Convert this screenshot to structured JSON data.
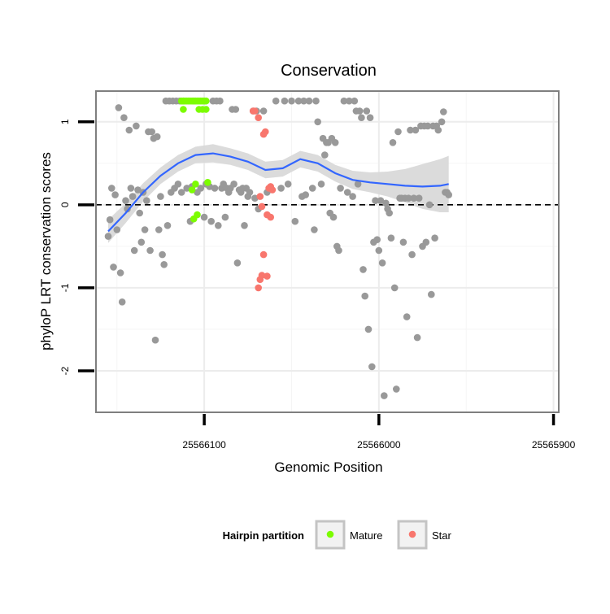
{
  "chart_data": {
    "type": "scatter",
    "title": "Conservation",
    "xlabel": "Genomic Position",
    "ylabel": "phyloP LRT conservation scores",
    "x_reversed": true,
    "xlim": [
      25566162,
      25565897
    ],
    "ylim": [
      -2.5,
      1.37
    ],
    "x_ticks": [
      {
        "value": 25566100,
        "label": "25566100"
      },
      {
        "value": 25566000,
        "label": "25566000"
      },
      {
        "value": 25565900,
        "label": "25565900"
      }
    ],
    "y_ticks": [
      {
        "value": 1,
        "label": "1"
      },
      {
        "value": 0,
        "label": "0"
      },
      {
        "value": -1,
        "label": "-1"
      },
      {
        "value": -2,
        "label": "-2"
      }
    ],
    "grid": true,
    "reference_line": {
      "y": 0,
      "style": "dashed"
    },
    "legend": {
      "title": "Hairpin partition",
      "position": "bottom",
      "entries": [
        {
          "label": "Mature",
          "color": "#7cfc00"
        },
        {
          "label": "Star",
          "color": "#f8766d"
        }
      ]
    },
    "colors": {
      "other": "#999999",
      "Mature": "#7cfc00",
      "Star": "#f8766d",
      "smooth": "#3366ff",
      "ribbon": "#d9d9d9"
    },
    "series": [
      {
        "group": "other",
        "points": [
          [
            25566155,
            -0.38
          ],
          [
            25566154,
            -0.18
          ],
          [
            25566153,
            0.2
          ],
          [
            25566152,
            -0.75
          ],
          [
            25566151,
            0.12
          ],
          [
            25566150,
            -0.3
          ],
          [
            25566149,
            1.17
          ],
          [
            25566148,
            -0.82
          ],
          [
            25566147,
            -1.17
          ],
          [
            25566146,
            1.05
          ],
          [
            25566145,
            0.05
          ],
          [
            25566144,
            -0.05
          ],
          [
            25566143,
            0.9
          ],
          [
            25566142,
            0.2
          ],
          [
            25566141,
            0.1
          ],
          [
            25566140,
            -0.55
          ],
          [
            25566139,
            0.95
          ],
          [
            25566138,
            0.18
          ],
          [
            25566137,
            -0.1
          ],
          [
            25566136,
            -0.45
          ],
          [
            25566135,
            0.15
          ],
          [
            25566134,
            -0.3
          ],
          [
            25566133,
            0.05
          ],
          [
            25566132,
            0.88
          ],
          [
            25566131,
            -0.55
          ],
          [
            25566130,
            0.88
          ],
          [
            25566129,
            0.8
          ],
          [
            25566128,
            -1.63
          ],
          [
            25566127,
            0.82
          ],
          [
            25566126,
            -0.3
          ],
          [
            25566125,
            0.1
          ],
          [
            25566124,
            -0.6
          ],
          [
            25566123,
            -0.72
          ],
          [
            25566122,
            1.25
          ],
          [
            25566121,
            -0.25
          ],
          [
            25566120,
            1.25
          ],
          [
            25566119,
            0.15
          ],
          [
            25566118,
            1.25
          ],
          [
            25566117,
            0.2
          ],
          [
            25566116,
            1.25
          ],
          [
            25566115,
            0.25
          ],
          [
            25566114,
            1.25
          ],
          [
            25566113,
            0.15
          ],
          [
            25566112,
            1.25
          ],
          [
            25566110,
            0.2
          ],
          [
            25566108,
            -0.2
          ],
          [
            25566107,
            0.22
          ],
          [
            25566106,
            1.25
          ],
          [
            25566104,
            0.15
          ],
          [
            25566102,
            0.2
          ],
          [
            25566100,
            -0.15
          ],
          [
            25566099,
            0.25
          ],
          [
            25566097,
            0.22
          ],
          [
            25566096,
            -0.2
          ],
          [
            25566095,
            1.25
          ],
          [
            25566094,
            0.2
          ],
          [
            25566093,
            1.25
          ],
          [
            25566092,
            -0.25
          ],
          [
            25566091,
            1.25
          ],
          [
            25566090,
            0.2
          ],
          [
            25566089,
            0.25
          ],
          [
            25566088,
            -0.15
          ],
          [
            25566087,
            0.2
          ],
          [
            25566086,
            0.15
          ],
          [
            25566085,
            0.2
          ],
          [
            25566084,
            1.15
          ],
          [
            25566083,
            0.25
          ],
          [
            25566082,
            1.15
          ],
          [
            25566081,
            -0.7
          ],
          [
            25566080,
            0.18
          ],
          [
            25566079,
            0.15
          ],
          [
            25566078,
            0.2
          ],
          [
            25566077,
            -0.25
          ],
          [
            25566076,
            0.2
          ],
          [
            25566075,
            0.1
          ],
          [
            25566074,
            0.15
          ],
          [
            25566072,
            1.13
          ],
          [
            25566071,
            0.08
          ],
          [
            25566070,
            1.13
          ],
          [
            25566069,
            -0.05
          ],
          [
            25566066,
            1.13
          ],
          [
            25566064,
            0.15
          ],
          [
            25566059,
            1.25
          ],
          [
            25566056,
            0.2
          ],
          [
            25566054,
            1.25
          ],
          [
            25566052,
            0.25
          ],
          [
            25566050,
            1.25
          ],
          [
            25566048,
            -0.2
          ],
          [
            25566046,
            1.25
          ],
          [
            25566044,
            0.1
          ],
          [
            25566043,
            1.25
          ],
          [
            25566042,
            0.12
          ],
          [
            25566040,
            1.25
          ],
          [
            25566038,
            0.2
          ],
          [
            25566037,
            -0.3
          ],
          [
            25566036,
            1.25
          ],
          [
            25566035,
            1.0
          ],
          [
            25566033,
            0.25
          ],
          [
            25566032,
            0.8
          ],
          [
            25566031,
            0.6
          ],
          [
            25566030,
            0.75
          ],
          [
            25566029,
            0.75
          ],
          [
            25566028,
            -0.1
          ],
          [
            25566027,
            0.8
          ],
          [
            25566026,
            -0.15
          ],
          [
            25566025,
            0.75
          ],
          [
            25566024,
            -0.5
          ],
          [
            25566023,
            -0.55
          ],
          [
            25566022,
            0.2
          ],
          [
            25566020,
            1.25
          ],
          [
            25566018,
            0.15
          ],
          [
            25566017,
            1.25
          ],
          [
            25566015,
            0.1
          ],
          [
            25566014,
            1.25
          ],
          [
            25566013,
            1.13
          ],
          [
            25566012,
            0.25
          ],
          [
            25566011,
            1.13
          ],
          [
            25566010,
            1.05
          ],
          [
            25566009,
            -0.78
          ],
          [
            25566008,
            -1.1
          ],
          [
            25566007,
            1.13
          ],
          [
            25566006,
            -1.5
          ],
          [
            25566005,
            1.05
          ],
          [
            25566004,
            -1.95
          ],
          [
            25566003,
            -0.45
          ],
          [
            25566002,
            0.05
          ],
          [
            25566001,
            -0.42
          ],
          [
            25566000,
            -0.55
          ],
          [
            25565999,
            0.05
          ],
          [
            25565998,
            -0.7
          ],
          [
            25565997,
            -2.3
          ],
          [
            25565996,
            0.02
          ],
          [
            25565995,
            -0.05
          ],
          [
            25565994,
            -0.1
          ],
          [
            25565993,
            -0.4
          ],
          [
            25565992,
            0.75
          ],
          [
            25565991,
            -1.0
          ],
          [
            25565990,
            -2.22
          ],
          [
            25565989,
            0.88
          ],
          [
            25565988,
            0.08
          ],
          [
            25565987,
            0.08
          ],
          [
            25565986,
            -0.45
          ],
          [
            25565985,
            0.08
          ],
          [
            25565984,
            -1.35
          ],
          [
            25565983,
            0.08
          ],
          [
            25565982,
            0.9
          ],
          [
            25565981,
            -0.6
          ],
          [
            25565980,
            0.08
          ],
          [
            25565979,
            0.9
          ],
          [
            25565978,
            -1.6
          ],
          [
            25565977,
            0.08
          ],
          [
            25565976,
            0.95
          ],
          [
            25565975,
            -0.5
          ],
          [
            25565974,
            0.95
          ],
          [
            25565973,
            -0.45
          ],
          [
            25565972,
            0.95
          ],
          [
            25565971,
            0.0
          ],
          [
            25565970,
            -1.08
          ],
          [
            25565969,
            0.95
          ],
          [
            25565968,
            -0.4
          ],
          [
            25565967,
            0.95
          ],
          [
            25565966,
            0.9
          ],
          [
            25565964,
            1.0
          ],
          [
            25565963,
            1.12
          ],
          [
            25565962,
            0.15
          ],
          [
            25565961,
            0.15
          ],
          [
            25565960,
            0.12
          ]
        ]
      },
      {
        "group": "Mature",
        "points": [
          [
            25566113,
            1.25
          ],
          [
            25566112,
            1.25
          ],
          [
            25566111,
            1.25
          ],
          [
            25566110,
            1.25
          ],
          [
            25566109,
            1.25
          ],
          [
            25566108,
            1.25
          ],
          [
            25566107,
            1.25
          ],
          [
            25566106,
            1.25
          ],
          [
            25566105,
            1.25
          ],
          [
            25566104,
            1.25
          ],
          [
            25566103,
            1.25
          ],
          [
            25566102,
            1.25
          ],
          [
            25566101,
            1.25
          ],
          [
            25566100,
            1.25
          ],
          [
            25566099,
            1.25
          ],
          [
            25566112,
            1.15
          ],
          [
            25566105,
            0.25
          ],
          [
            25566103,
            1.15
          ],
          [
            25566101,
            1.15
          ],
          [
            25566099,
            1.15
          ],
          [
            25566107,
            0.18
          ],
          [
            25566106,
            -0.17
          ],
          [
            25566104,
            -0.12
          ],
          [
            25566098,
            0.27
          ]
        ]
      },
      {
        "group": "Star",
        "points": [
          [
            25566072,
            1.13
          ],
          [
            25566071,
            1.13
          ],
          [
            25566069,
            1.05
          ],
          [
            25566068,
            0.1
          ],
          [
            25566067,
            -0.02
          ],
          [
            25566066,
            0.85
          ],
          [
            25566065,
            0.88
          ],
          [
            25566064,
            -0.12
          ],
          [
            25566063,
            0.2
          ],
          [
            25566062,
            0.22
          ],
          [
            25566061,
            0.18
          ],
          [
            25566066,
            -0.6
          ],
          [
            25566067,
            -0.85
          ],
          [
            25566068,
            -0.9
          ],
          [
            25566069,
            -1.0
          ],
          [
            25566064,
            -0.86
          ],
          [
            25566062,
            -0.15
          ]
        ]
      }
    ],
    "smooth": {
      "method": "loess",
      "x": [
        25566155,
        25566145,
        25566135,
        25566125,
        25566115,
        25566105,
        25566095,
        25566085,
        25566075,
        25566065,
        25566055,
        25566045,
        25566035,
        25566025,
        25566015,
        25566005,
        25565995,
        25565985,
        25565975,
        25565965,
        25565960
      ],
      "y": [
        -0.32,
        -0.1,
        0.15,
        0.35,
        0.5,
        0.6,
        0.62,
        0.58,
        0.52,
        0.42,
        0.44,
        0.55,
        0.5,
        0.38,
        0.3,
        0.27,
        0.25,
        0.23,
        0.22,
        0.23,
        0.25
      ],
      "se": [
        0.14,
        0.12,
        0.11,
        0.1,
        0.1,
        0.1,
        0.11,
        0.1,
        0.1,
        0.1,
        0.1,
        0.1,
        0.1,
        0.1,
        0.11,
        0.12,
        0.15,
        0.2,
        0.27,
        0.32,
        0.34
      ]
    }
  }
}
